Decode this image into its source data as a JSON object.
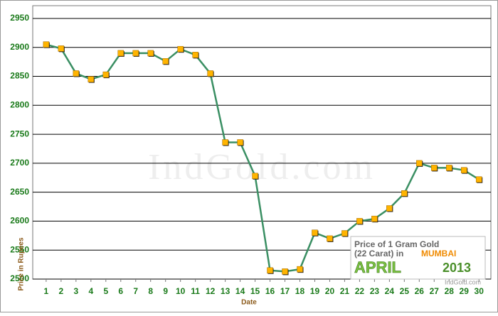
{
  "chart_data": {
    "type": "line",
    "y_label": "Price in Rupees",
    "x_label": "Date",
    "watermark": "IndGold.com",
    "annotations": {
      "line1": "Price of 1 Gram Gold",
      "line2": "(22 Carat) in",
      "city": "MUMBAI",
      "month": "APRIL",
      "year": "2013",
      "credit": "IndGold.com"
    },
    "x": [
      1,
      2,
      3,
      4,
      5,
      6,
      7,
      8,
      9,
      10,
      11,
      12,
      13,
      14,
      15,
      16,
      17,
      18,
      19,
      20,
      21,
      22,
      23,
      24,
      25,
      26,
      27,
      28,
      29,
      30
    ],
    "values": [
      2905,
      2898,
      2855,
      2845,
      2853,
      2890,
      2890,
      2890,
      2876,
      2897,
      2887,
      2855,
      2736,
      2736,
      2678,
      2515,
      2513,
      2517,
      2580,
      2570,
      2579,
      2600,
      2604,
      2622,
      2648,
      2700,
      2692,
      2692,
      2688,
      2672
    ],
    "color": "#3a8f63",
    "marker_color": "#ffb400",
    "xlim": [
      0.1,
      30.8
    ],
    "xticks": [
      1,
      2,
      3,
      4,
      5,
      6,
      7,
      8,
      9,
      10,
      11,
      12,
      13,
      14,
      15,
      16,
      17,
      18,
      19,
      20,
      21,
      22,
      23,
      24,
      25,
      26,
      27,
      28,
      29,
      30
    ],
    "ylim": [
      2500,
      2972
    ],
    "yticks": [
      2500,
      2550,
      2600,
      2650,
      2700,
      2750,
      2800,
      2850,
      2900,
      2950
    ],
    "grid": true
  }
}
